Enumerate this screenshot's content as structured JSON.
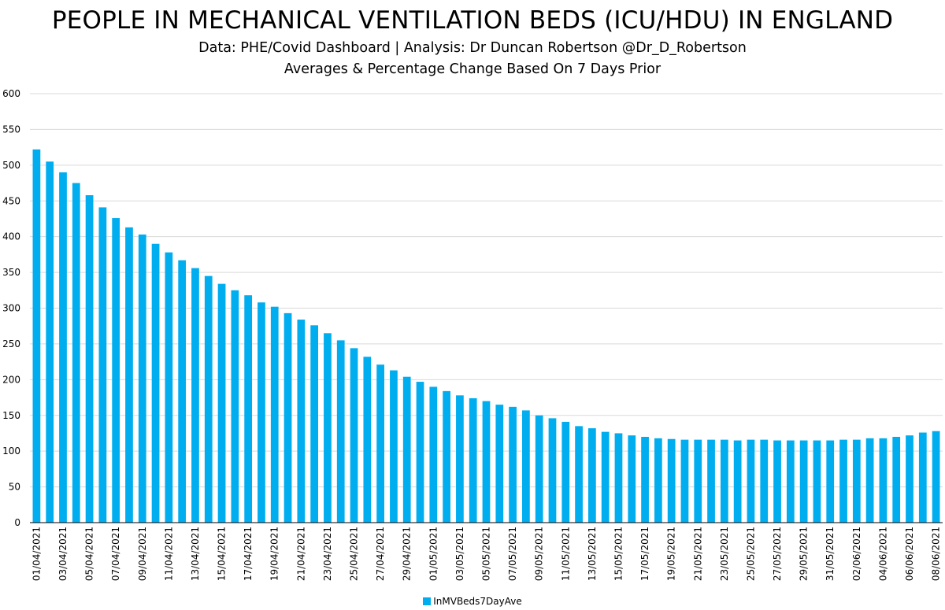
{
  "header": {
    "title": "PEOPLE IN MECHANICAL VENTILATION BEDS (ICU/HDU) IN ENGLAND",
    "subtitle1": "Data: PHE/Covid Dashboard | Analysis: Dr Duncan Robertson @Dr_D_Robertson",
    "subtitle2": "Averages & Percentage Change Based On 7 Days Prior"
  },
  "colors": {
    "bar": "#00aeef",
    "grid": "#d9d9d9",
    "axis": "#000000"
  },
  "chart_data": {
    "type": "bar",
    "ylim": [
      0,
      600
    ],
    "yticks": [
      0,
      50,
      100,
      150,
      200,
      250,
      300,
      350,
      400,
      450,
      500,
      550,
      600
    ],
    "grid": true,
    "legend_position": "bottom",
    "categories": [
      "01/04/2021",
      "02/04/2021",
      "03/04/2021",
      "04/04/2021",
      "05/04/2021",
      "06/04/2021",
      "07/04/2021",
      "08/04/2021",
      "09/04/2021",
      "10/04/2021",
      "11/04/2021",
      "12/04/2021",
      "13/04/2021",
      "14/04/2021",
      "15/04/2021",
      "16/04/2021",
      "17/04/2021",
      "18/04/2021",
      "19/04/2021",
      "20/04/2021",
      "21/04/2021",
      "22/04/2021",
      "23/04/2021",
      "24/04/2021",
      "25/04/2021",
      "26/04/2021",
      "27/04/2021",
      "28/04/2021",
      "29/04/2021",
      "30/04/2021",
      "01/05/2021",
      "02/05/2021",
      "03/05/2021",
      "04/05/2021",
      "05/05/2021",
      "06/05/2021",
      "07/05/2021",
      "08/05/2021",
      "09/05/2021",
      "10/05/2021",
      "11/05/2021",
      "12/05/2021",
      "13/05/2021",
      "14/05/2021",
      "15/05/2021",
      "16/05/2021",
      "17/05/2021",
      "18/05/2021",
      "19/05/2021",
      "20/05/2021",
      "21/05/2021",
      "22/05/2021",
      "23/05/2021",
      "24/05/2021",
      "25/05/2021",
      "26/05/2021",
      "27/05/2021",
      "28/05/2021",
      "29/05/2021",
      "30/05/2021",
      "31/05/2021",
      "01/06/2021",
      "02/06/2021",
      "03/06/2021",
      "04/06/2021",
      "05/06/2021",
      "06/06/2021",
      "07/06/2021",
      "08/06/2021"
    ],
    "xtick_labels": [
      "01/04/2021",
      "03/04/2021",
      "05/04/2021",
      "07/04/2021",
      "09/04/2021",
      "11/04/2021",
      "13/04/2021",
      "15/04/2021",
      "17/04/2021",
      "19/04/2021",
      "21/04/2021",
      "23/04/2021",
      "25/04/2021",
      "27/04/2021",
      "29/04/2021",
      "01/05/2021",
      "03/05/2021",
      "05/05/2021",
      "07/05/2021",
      "09/05/2021",
      "11/05/2021",
      "13/05/2021",
      "15/05/2021",
      "17/05/2021",
      "19/05/2021",
      "21/05/2021",
      "23/05/2021",
      "25/05/2021",
      "27/05/2021",
      "29/05/2021",
      "31/05/2021",
      "02/06/2021",
      "04/06/2021",
      "06/06/2021",
      "08/06/2021"
    ],
    "series": [
      {
        "name": "InMVBeds7DayAve",
        "values": [
          522,
          505,
          490,
          475,
          458,
          441,
          426,
          413,
          403,
          390,
          378,
          367,
          356,
          345,
          334,
          325,
          318,
          308,
          302,
          293,
          284,
          276,
          265,
          255,
          244,
          232,
          221,
          213,
          204,
          197,
          190,
          184,
          178,
          174,
          170,
          165,
          162,
          157,
          150,
          146,
          141,
          135,
          132,
          127,
          125,
          122,
          120,
          118,
          117,
          116,
          116,
          116,
          116,
          115,
          116,
          116,
          115,
          115,
          115,
          115,
          115,
          116,
          116,
          118,
          118,
          120,
          122,
          126,
          128
        ]
      }
    ]
  }
}
